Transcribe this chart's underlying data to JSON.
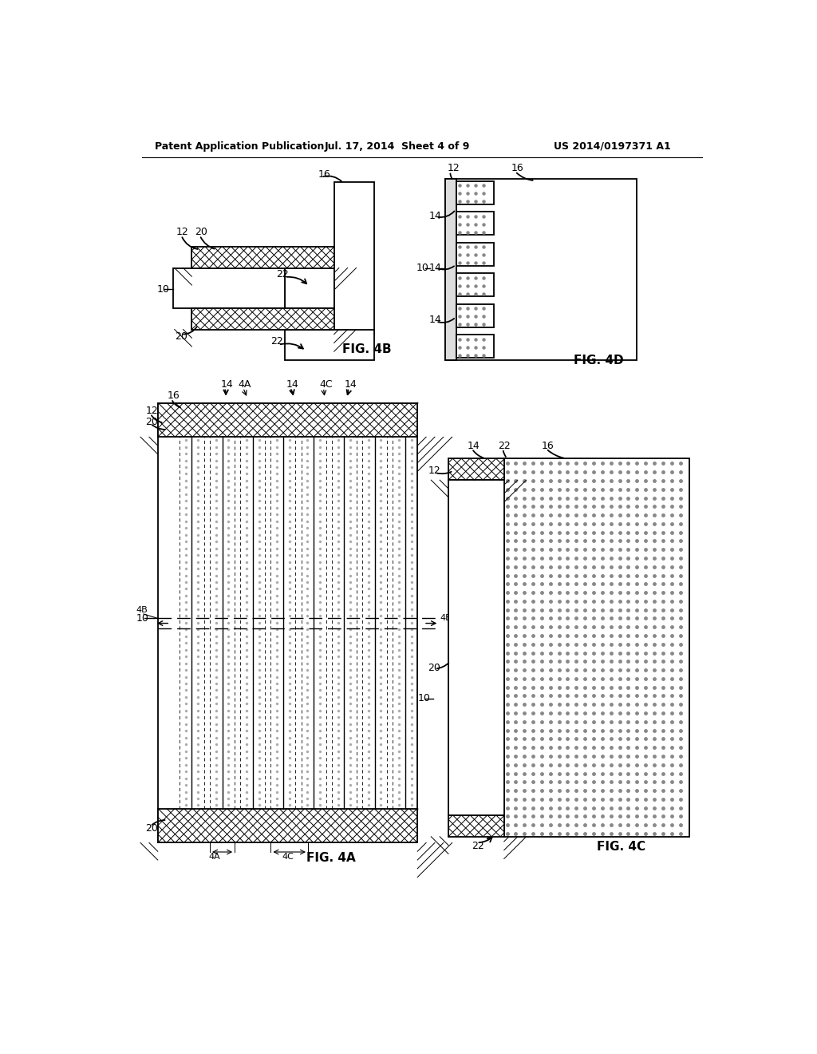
{
  "header_left": "Patent Application Publication",
  "header_mid": "Jul. 17, 2014  Sheet 4 of 9",
  "header_right": "US 2014/0197371 A1",
  "line_color": "#000000",
  "bg_color": "#ffffff"
}
